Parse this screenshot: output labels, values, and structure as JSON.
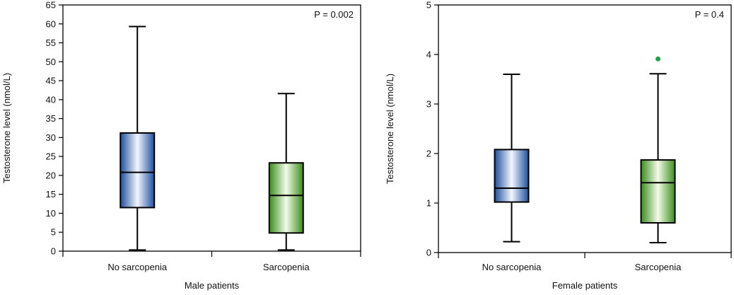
{
  "chart_data": [
    {
      "type": "box",
      "title": "",
      "xlabel": "Male patients",
      "ylabel": "Testosterone level (nmol/L)",
      "ylim": [
        0,
        65
      ],
      "yticks": [
        "0",
        "5",
        "10",
        "15",
        "20",
        "25",
        "30",
        "35",
        "40",
        "45",
        "50",
        "55",
        "60",
        "65"
      ],
      "ytick_values": [
        0,
        5,
        10,
        15,
        20,
        25,
        30,
        35,
        40,
        45,
        50,
        55,
        60,
        65
      ],
      "annotation": "P = 0.002",
      "categories": [
        "No sarcopenia",
        "Sarcopenia"
      ],
      "boxes": [
        {
          "category": "No sarcopenia",
          "min": 0.3,
          "q1": 11.5,
          "median": 20.8,
          "q3": 31.2,
          "max": 59.3,
          "outliers": [],
          "color": "#1f5db4"
        },
        {
          "category": "Sarcopenia",
          "min": 0.3,
          "q1": 4.8,
          "median": 14.7,
          "q3": 23.3,
          "max": 41.6,
          "outliers": [],
          "color": "#3f9a1c"
        }
      ]
    },
    {
      "type": "box",
      "title": "",
      "xlabel": "Female patients",
      "ylabel": "Testosterone level (nmol/L)",
      "ylim": [
        0,
        5
      ],
      "yticks": [
        "0",
        "1",
        "2",
        "3",
        "4",
        "5"
      ],
      "ytick_values": [
        0,
        1,
        2,
        3,
        4,
        5
      ],
      "annotation": "P = 0.4",
      "categories": [
        "No sarcopenia",
        "Sarcopenia"
      ],
      "boxes": [
        {
          "category": "No sarcopenia",
          "min": 0.22,
          "q1": 1.02,
          "median": 1.3,
          "q3": 2.08,
          "max": 3.6,
          "outliers": [],
          "color": "#1f5db4"
        },
        {
          "category": "Sarcopenia",
          "min": 0.2,
          "q1": 0.6,
          "median": 1.41,
          "q3": 1.87,
          "max": 3.61,
          "outliers": [
            3.91
          ],
          "color": "#3f9a1c"
        }
      ]
    }
  ]
}
